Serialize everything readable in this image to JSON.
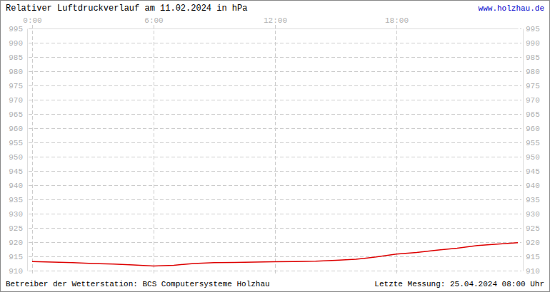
{
  "chart_data": {
    "type": "line",
    "title": "Relativer Luftdruckverlauf am 11.02.2024 in hPa",
    "annotations": [
      "www.holzhau.de",
      "Betreiber der Wetterstation: BCS Computersysteme Holzhau",
      "Letzte Messung: 25.04.2024 08:00 Uhr"
    ],
    "x": [
      0,
      1,
      2,
      3,
      4,
      5,
      6,
      7,
      8,
      9,
      10,
      11,
      12,
      13,
      14,
      15,
      16,
      17,
      18,
      19,
      20,
      21,
      22,
      23,
      24
    ],
    "values": [
      913.2,
      913.0,
      912.8,
      912.5,
      912.3,
      912.0,
      911.6,
      911.9,
      912.5,
      912.8,
      912.9,
      913.0,
      913.1,
      913.2,
      913.3,
      913.6,
      914.0,
      914.8,
      915.8,
      916.4,
      917.2,
      917.9,
      918.8,
      919.3,
      919.8
    ],
    "color": "#dd0000",
    "xlim": [
      0,
      24
    ],
    "ylim": [
      910,
      995
    ],
    "xticks": [
      {
        "value": 0,
        "label": "0:00"
      },
      {
        "value": 6,
        "label": "6:00"
      },
      {
        "value": 12,
        "label": "12:00"
      },
      {
        "value": 18,
        "label": "18:00"
      }
    ],
    "yticks": [
      910,
      915,
      920,
      925,
      930,
      935,
      940,
      945,
      950,
      955,
      960,
      965,
      970,
      975,
      980,
      985,
      990,
      995
    ],
    "grid": true
  }
}
